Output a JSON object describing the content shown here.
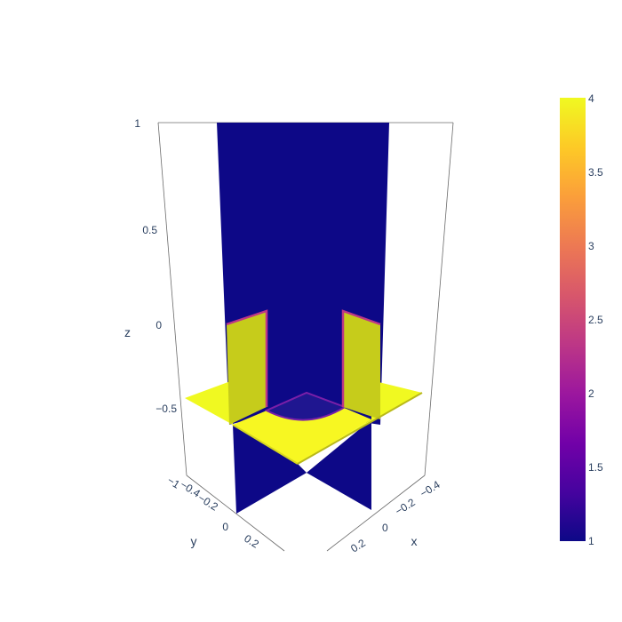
{
  "chart_data": {
    "type": "surface",
    "x_axis": {
      "title": "x",
      "ticks": [
        "−0.4",
        "−0.2",
        "0",
        "0.2"
      ]
    },
    "y_axis": {
      "title": "y",
      "ticks": [
        "−1",
        "−0.4",
        "−0.2",
        "0",
        "0.2"
      ]
    },
    "z_axis": {
      "title": "z",
      "ticks": [
        "1",
        "0.5",
        "0",
        "−0.5"
      ]
    },
    "colorbar": {
      "min": 1,
      "max": 4,
      "ticks": [
        "4",
        "3.5",
        "3",
        "2.5",
        "2",
        "1.5",
        "1"
      ],
      "colorscale": [
        "#0d0887",
        "#46039f",
        "#7201a8",
        "#9c179e",
        "#bd3786",
        "#d8576b",
        "#ed7953",
        "#fb9f3a",
        "#fdca26",
        "#f0f921"
      ]
    },
    "slices": [
      {
        "name": "vertical-slice-xz",
        "value_range": [
          1,
          1
        ]
      },
      {
        "name": "vertical-slice-yz",
        "value_range": [
          1,
          1
        ]
      },
      {
        "name": "horizontal-slice",
        "value_range": [
          1,
          4
        ]
      }
    ],
    "colors": {
      "low": "#0d0887",
      "high": "#f0f921",
      "inner_disc": "#1f1690",
      "wall": "#c6cc1b"
    }
  }
}
